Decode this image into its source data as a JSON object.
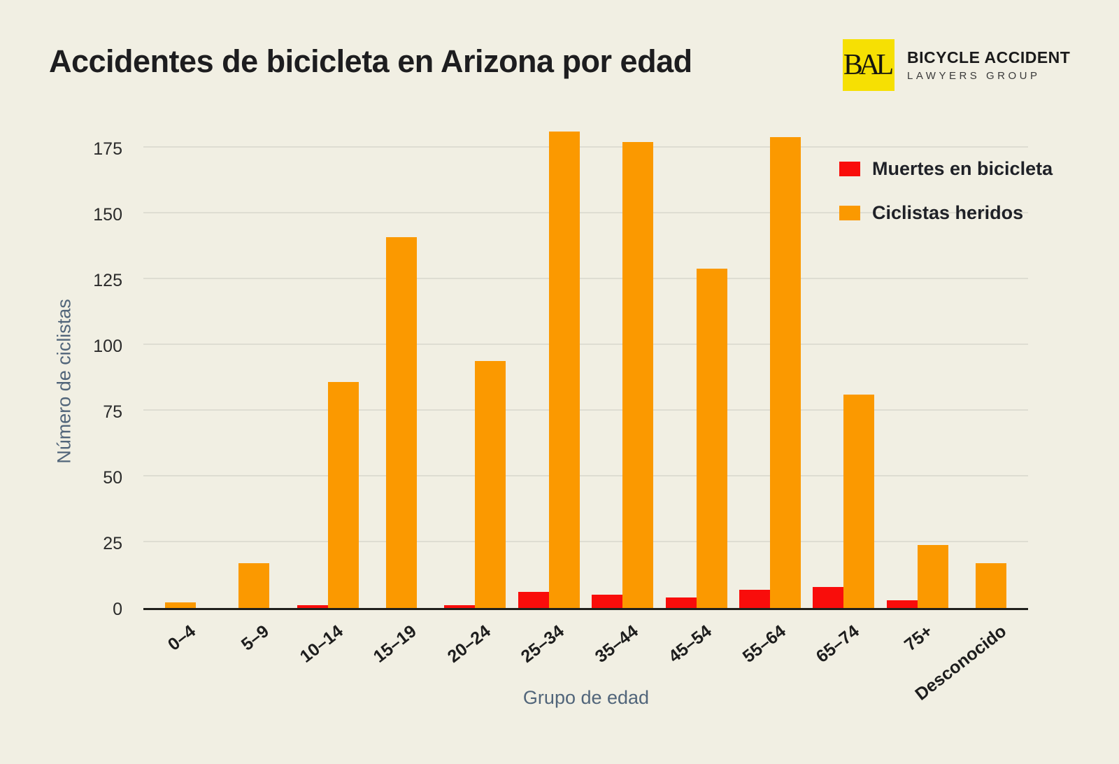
{
  "page": {
    "background": "#F1EFE3"
  },
  "header": {
    "title": "Accidentes de bicicleta en Arizona por edad",
    "logo": {
      "monogram": "BAL",
      "line1": "BICYCLE ACCIDENT",
      "line2": "LAWYERS GROUP",
      "box_color": "#F6E003"
    }
  },
  "chart_data": {
    "type": "bar",
    "title": "Accidentes de bicicleta en Arizona por edad",
    "xlabel": "Grupo de edad",
    "ylabel": "Número de ciclistas",
    "categories": [
      "0–4",
      "5–9",
      "10–14",
      "15–19",
      "20–24",
      "25–34",
      "35–44",
      "45–54",
      "55–64",
      "65–74",
      "75+",
      "Desconocido"
    ],
    "series": [
      {
        "name": "Muertes en bicicleta",
        "color": "#F90D0B",
        "values": [
          0,
          0,
          1,
          0,
          1,
          6,
          5,
          4,
          7,
          8,
          3,
          0
        ]
      },
      {
        "name": "Ciclistas heridos",
        "color": "#FB9900",
        "values": [
          2,
          17,
          86,
          141,
          94,
          181,
          177,
          129,
          179,
          81,
          24,
          17
        ]
      }
    ],
    "y_ticks": [
      0,
      25,
      50,
      75,
      100,
      125,
      150,
      175
    ],
    "ylim": [
      0,
      187.5
    ],
    "grid": true,
    "gridline_color": "#DEDDD2",
    "axis_line_color": "#20201c",
    "legend_position": "top-right"
  }
}
